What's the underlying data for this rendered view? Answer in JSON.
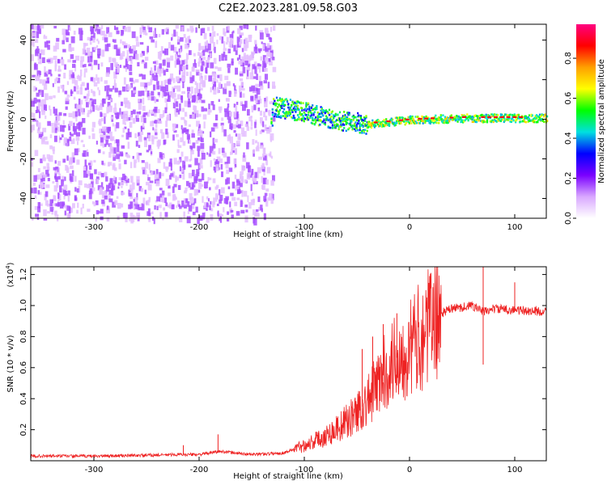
{
  "title": "C2E2.2023.281.09.58.G03",
  "chart_data": [
    {
      "type": "heatmap",
      "xlabel": "Height of straight line (km)",
      "ylabel": "Frequency (Hz)",
      "xlim": [
        -360,
        130
      ],
      "ylim": [
        -50,
        48
      ],
      "xticks": [
        -300,
        -200,
        -100,
        0,
        100
      ],
      "yticks": [
        -40,
        -20,
        0,
        20,
        40
      ],
      "colorbar": {
        "label": "Normalized spectral amplitude",
        "range": [
          0.0,
          0.97
        ],
        "ticks": [
          0.0,
          0.2,
          0.4,
          0.6,
          0.8
        ],
        "colors": [
          "#ffffff",
          "#d9a8ff",
          "#7a00ff",
          "#0000ff",
          "#00e0e0",
          "#00ff00",
          "#ffff00",
          "#ffa000",
          "#ff0000",
          "#ff0080"
        ]
      },
      "regions": [
        {
          "x": [
            -360,
            -130
          ],
          "y": [
            -50,
            48
          ],
          "level": 0.12
        },
        {
          "x": [
            -130,
            -40
          ],
          "y": [
            -7,
            8
          ],
          "level": 0.45
        },
        {
          "x": [
            -40,
            130
          ],
          "y": [
            -2,
            3
          ],
          "level": 0.55
        }
      ],
      "track": [
        {
          "x": -130,
          "y": 7
        },
        {
          "x": -100,
          "y": 4
        },
        {
          "x": -70,
          "y": 0
        },
        {
          "x": -40,
          "y": -2
        },
        {
          "x": 0,
          "y": 0
        },
        {
          "x": 50,
          "y": 1
        },
        {
          "x": 130,
          "y": 1
        }
      ],
      "grid": false
    },
    {
      "type": "line",
      "xlabel": "Height of straight line (km)",
      "ylabel": "SNR (10 * v/v)",
      "yscale_label": "(x10",
      "yscale_exp": "4",
      "yscale_close": ")",
      "xlim": [
        -360,
        130
      ],
      "ylim": [
        0,
        1.25
      ],
      "xticks": [
        -300,
        -200,
        -100,
        0,
        100
      ],
      "yticks": [
        0.2,
        0.4,
        0.6,
        0.8,
        1.0,
        1.2
      ],
      "ytick_labels": [
        "0.2",
        "0.4",
        "0.6",
        "0.8",
        "1.0",
        "1.2"
      ],
      "series": [
        {
          "color": "#ee2222",
          "points": [
            [
              -360,
              0.03
            ],
            [
              -300,
              0.03
            ],
            [
              -250,
              0.035
            ],
            [
              -220,
              0.04
            ],
            [
              -200,
              0.04
            ],
            [
              -180,
              0.06
            ],
            [
              -150,
              0.04
            ],
            [
              -120,
              0.05
            ],
            [
              -100,
              0.1
            ],
            [
              -80,
              0.16
            ],
            [
              -60,
              0.25
            ],
            [
              -40,
              0.38
            ],
            [
              -25,
              0.55
            ],
            [
              -15,
              0.65
            ],
            [
              0,
              0.72
            ],
            [
              10,
              0.8
            ],
            [
              20,
              0.88
            ],
            [
              30,
              0.95
            ],
            [
              40,
              0.98
            ],
            [
              60,
              1.0
            ],
            [
              70,
              0.96
            ],
            [
              80,
              0.98
            ],
            [
              100,
              0.97
            ],
            [
              130,
              0.96
            ]
          ],
          "spikes": [
            {
              "x": -182,
              "y": 0.17
            },
            {
              "x": -215,
              "y": 0.1
            },
            {
              "x": -45,
              "y": 0.72
            },
            {
              "x": -35,
              "y": 0.8
            },
            {
              "x": -25,
              "y": 0.88
            },
            {
              "x": -12,
              "y": 0.95
            },
            {
              "x": 70,
              "y": 1.25
            },
            {
              "x": 70,
              "y": 0.62
            },
            {
              "x": 100,
              "y": 1.15
            }
          ]
        }
      ],
      "grid": false
    }
  ]
}
